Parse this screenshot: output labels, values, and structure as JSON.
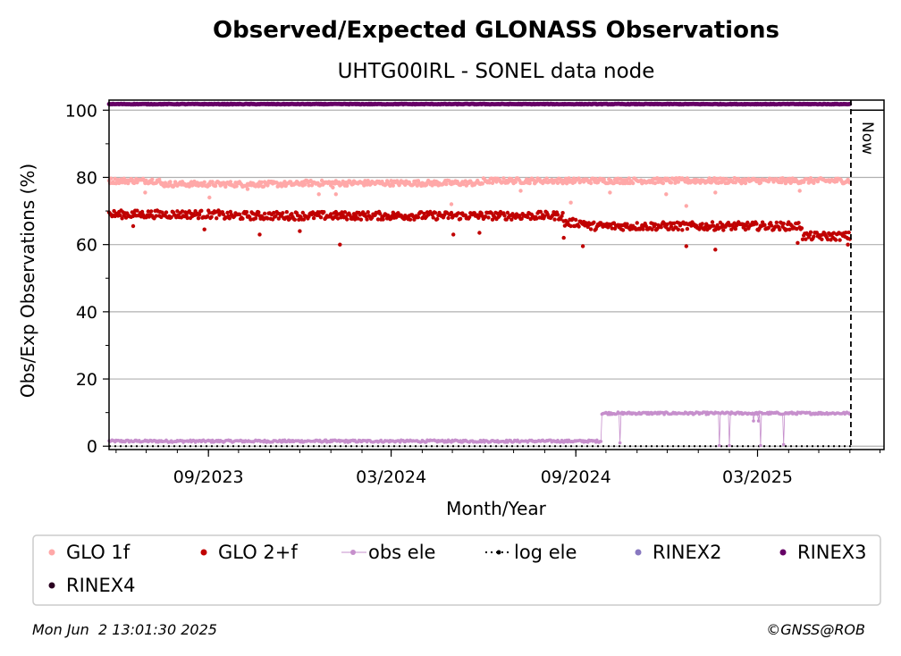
{
  "chart_data": {
    "type": "scatter",
    "title": "Observed/Expected GLONASS Observations",
    "subtitle": "UHTG00IRL - SONEL data node",
    "xlabel": "Month/Year",
    "ylabel": "Obs/Exp Observations (%)",
    "x_range": [
      "2023-05-25",
      "2025-07-05"
    ],
    "ylim": [
      -1,
      103
    ],
    "yticks": [
      0,
      20,
      40,
      60,
      80,
      100
    ],
    "xticks": [
      {
        "date": "2023-09-01",
        "label": "09/2023"
      },
      {
        "date": "2024-03-01",
        "label": "03/2024"
      },
      {
        "date": "2024-09-01",
        "label": "09/2024"
      },
      {
        "date": "2025-03-01",
        "label": "03/2025"
      }
    ],
    "grid": "horizontal",
    "now_date": "2025-06-02",
    "now_label": "Now",
    "legend_position": "bottom",
    "series": [
      {
        "name": "GLO 1f",
        "color": "#ffa8a8",
        "marker": "dot",
        "segments": [
          {
            "from": "2023-05-25",
            "to": "2023-07-15",
            "value": 79
          },
          {
            "from": "2023-07-15",
            "to": "2023-12-01",
            "value": 78
          },
          {
            "from": "2023-12-01",
            "to": "2024-06-01",
            "value": 78.3
          },
          {
            "from": "2024-06-01",
            "to": "2025-06-02",
            "value": 79
          }
        ],
        "outliers": [
          {
            "date": "2023-06-30",
            "value": 75.5
          },
          {
            "date": "2023-09-02",
            "value": 74
          },
          {
            "date": "2023-10-10",
            "value": 76.5
          },
          {
            "date": "2023-12-20",
            "value": 75
          },
          {
            "date": "2024-01-03",
            "value": 77
          },
          {
            "date": "2024-01-06",
            "value": 75
          },
          {
            "date": "2024-04-30",
            "value": 72
          },
          {
            "date": "2024-07-08",
            "value": 76
          },
          {
            "date": "2024-08-27",
            "value": 72.5
          },
          {
            "date": "2024-10-05",
            "value": 75.5
          },
          {
            "date": "2024-11-30",
            "value": 75
          },
          {
            "date": "2024-12-20",
            "value": 71.5
          },
          {
            "date": "2025-01-18",
            "value": 75.5
          },
          {
            "date": "2025-04-12",
            "value": 76
          }
        ]
      },
      {
        "name": "GLO 2+f",
        "color": "#c00000",
        "marker": "dot",
        "segments": [
          {
            "from": "2023-05-25",
            "to": "2023-09-15",
            "value": 69
          },
          {
            "from": "2023-09-15",
            "to": "2024-08-20",
            "value": 68.6
          },
          {
            "from": "2024-08-20",
            "to": "2024-09-12",
            "value": 66.5
          },
          {
            "from": "2024-09-12",
            "to": "2025-04-15",
            "value": 65.5
          },
          {
            "from": "2025-04-15",
            "to": "2025-06-02",
            "value": 62.5
          }
        ],
        "outliers": [
          {
            "date": "2023-06-18",
            "value": 65.5
          },
          {
            "date": "2023-08-28",
            "value": 64.5
          },
          {
            "date": "2023-10-22",
            "value": 63
          },
          {
            "date": "2023-12-01",
            "value": 64
          },
          {
            "date": "2024-01-10",
            "value": 60
          },
          {
            "date": "2024-05-02",
            "value": 63
          },
          {
            "date": "2024-05-28",
            "value": 63.5
          },
          {
            "date": "2024-08-20",
            "value": 62
          },
          {
            "date": "2024-09-08",
            "value": 59.5
          },
          {
            "date": "2024-12-20",
            "value": 59.5
          },
          {
            "date": "2025-01-18",
            "value": 58.5
          },
          {
            "date": "2025-04-10",
            "value": 60.5
          },
          {
            "date": "2025-05-30",
            "value": 60
          }
        ]
      },
      {
        "name": "obs ele",
        "color": "#c68fcc",
        "marker": "line-dot",
        "segments": [
          {
            "from": "2023-05-25",
            "to": "2024-09-27",
            "value": 1.5
          },
          {
            "from": "2024-09-27",
            "to": "2025-06-02",
            "value": 9.8
          }
        ],
        "dips": [
          {
            "date": "2024-10-15",
            "value": 1
          },
          {
            "date": "2025-01-22",
            "value": 0.2
          },
          {
            "date": "2025-02-01",
            "value": 0.2
          },
          {
            "date": "2025-02-25",
            "value": 7.5
          },
          {
            "date": "2025-03-02",
            "value": 7.5
          },
          {
            "date": "2025-03-04",
            "value": 0.2
          },
          {
            "date": "2025-03-27",
            "value": 0.5
          }
        ]
      },
      {
        "name": "log ele",
        "color": "#000000",
        "marker": "dotted-line",
        "segments": [
          {
            "from": "2023-05-25",
            "to": "2025-06-02",
            "value": 0
          }
        ]
      },
      {
        "name": "RINEX2",
        "color": "#8878c0",
        "marker": "dot",
        "segments": []
      },
      {
        "name": "RINEX3",
        "color": "#660066",
        "marker": "dot",
        "segments": [
          {
            "from": "2023-05-25",
            "to": "2025-06-02",
            "value": 101.8
          }
        ]
      },
      {
        "name": "RINEX4",
        "color": "#2a0020",
        "marker": "dot",
        "segments": []
      }
    ]
  },
  "footer": {
    "timestamp": "Mon Jun  2 13:01:30 2025",
    "credit": "©GNSS@ROB"
  }
}
